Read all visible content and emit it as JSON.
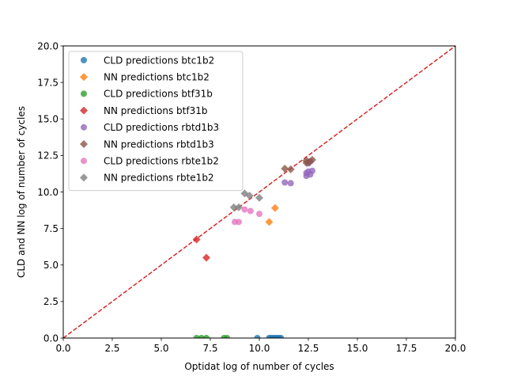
{
  "chart_data": {
    "type": "scatter",
    "xlabel": "Optidat log of number of cycles",
    "ylabel": "CLD and NN log of number of cycles",
    "xlim": [
      0,
      20
    ],
    "ylim": [
      0,
      20
    ],
    "xticks": [
      0,
      2.5,
      5,
      7.5,
      10,
      12.5,
      15,
      17.5,
      20
    ],
    "xtick_labels": [
      "0.0",
      "2.5",
      "5.0",
      "7.5",
      "10.0",
      "12.5",
      "15.0",
      "17.5",
      "20.0"
    ],
    "yticks": [
      0,
      2.5,
      5,
      7.5,
      10,
      12.5,
      15,
      17.5,
      20
    ],
    "ytick_labels": [
      "0.0",
      "2.5",
      "5.0",
      "7.5",
      "10.0",
      "12.5",
      "15.0",
      "17.5",
      "20.0"
    ],
    "grid": false,
    "legend_position": "top-left",
    "reference_line": {
      "from": [
        0,
        0
      ],
      "to": [
        20,
        20
      ],
      "color": "#d62728",
      "style": "dashed"
    },
    "series": [
      {
        "name": "CLD predictions btc1b2",
        "marker": "circle",
        "color": "#1f77b4",
        "points": [
          [
            9.9,
            0.0
          ],
          [
            10.5,
            0.0
          ],
          [
            10.6,
            0.0
          ],
          [
            10.7,
            0.0
          ],
          [
            10.8,
            0.0
          ],
          [
            10.9,
            0.0
          ],
          [
            11.0,
            0.0
          ],
          [
            11.1,
            0.0
          ]
        ]
      },
      {
        "name": "NN predictions btc1b2",
        "marker": "diamond",
        "color": "#ff7f0e",
        "points": [
          [
            10.8,
            8.9
          ],
          [
            10.5,
            7.95
          ]
        ]
      },
      {
        "name": "CLD predictions btf31b",
        "marker": "circle",
        "color": "#2ca02c",
        "points": [
          [
            6.8,
            0.0
          ],
          [
            7.05,
            0.0
          ],
          [
            7.3,
            0.0
          ],
          [
            8.2,
            0.0
          ],
          [
            8.35,
            0.0
          ]
        ]
      },
      {
        "name": "NN predictions btf31b",
        "marker": "diamond",
        "color": "#d62728",
        "points": [
          [
            6.8,
            6.75
          ],
          [
            7.3,
            5.5
          ]
        ]
      },
      {
        "name": "CLD predictions rbtd1b3",
        "marker": "circle",
        "color": "#9467bd",
        "points": [
          [
            11.3,
            10.65
          ],
          [
            11.6,
            10.6
          ],
          [
            12.4,
            11.1
          ],
          [
            12.4,
            11.3
          ],
          [
            12.5,
            11.4
          ],
          [
            12.6,
            11.2
          ],
          [
            12.7,
            11.45
          ],
          [
            12.5,
            11.95
          ],
          [
            12.6,
            12.1
          ]
        ]
      },
      {
        "name": "NN predictions rbtd1b3",
        "marker": "diamond",
        "color": "#8c564b",
        "points": [
          [
            11.3,
            11.6
          ],
          [
            11.6,
            11.55
          ],
          [
            12.4,
            12.0
          ],
          [
            12.4,
            12.15
          ],
          [
            12.55,
            12.05
          ],
          [
            12.7,
            12.2
          ]
        ]
      },
      {
        "name": "CLD predictions rbte1b2",
        "marker": "circle",
        "color": "#e377c2",
        "points": [
          [
            8.75,
            7.95
          ],
          [
            8.95,
            7.95
          ],
          [
            9.25,
            8.8
          ],
          [
            9.55,
            8.7
          ],
          [
            10.0,
            8.5
          ]
        ]
      },
      {
        "name": "NN predictions rbte1b2",
        "marker": "diamond",
        "color": "#7f7f7f",
        "points": [
          [
            8.7,
            8.95
          ],
          [
            8.95,
            8.95
          ],
          [
            9.25,
            9.9
          ],
          [
            9.5,
            9.75
          ],
          [
            10.0,
            9.6
          ]
        ]
      }
    ]
  }
}
